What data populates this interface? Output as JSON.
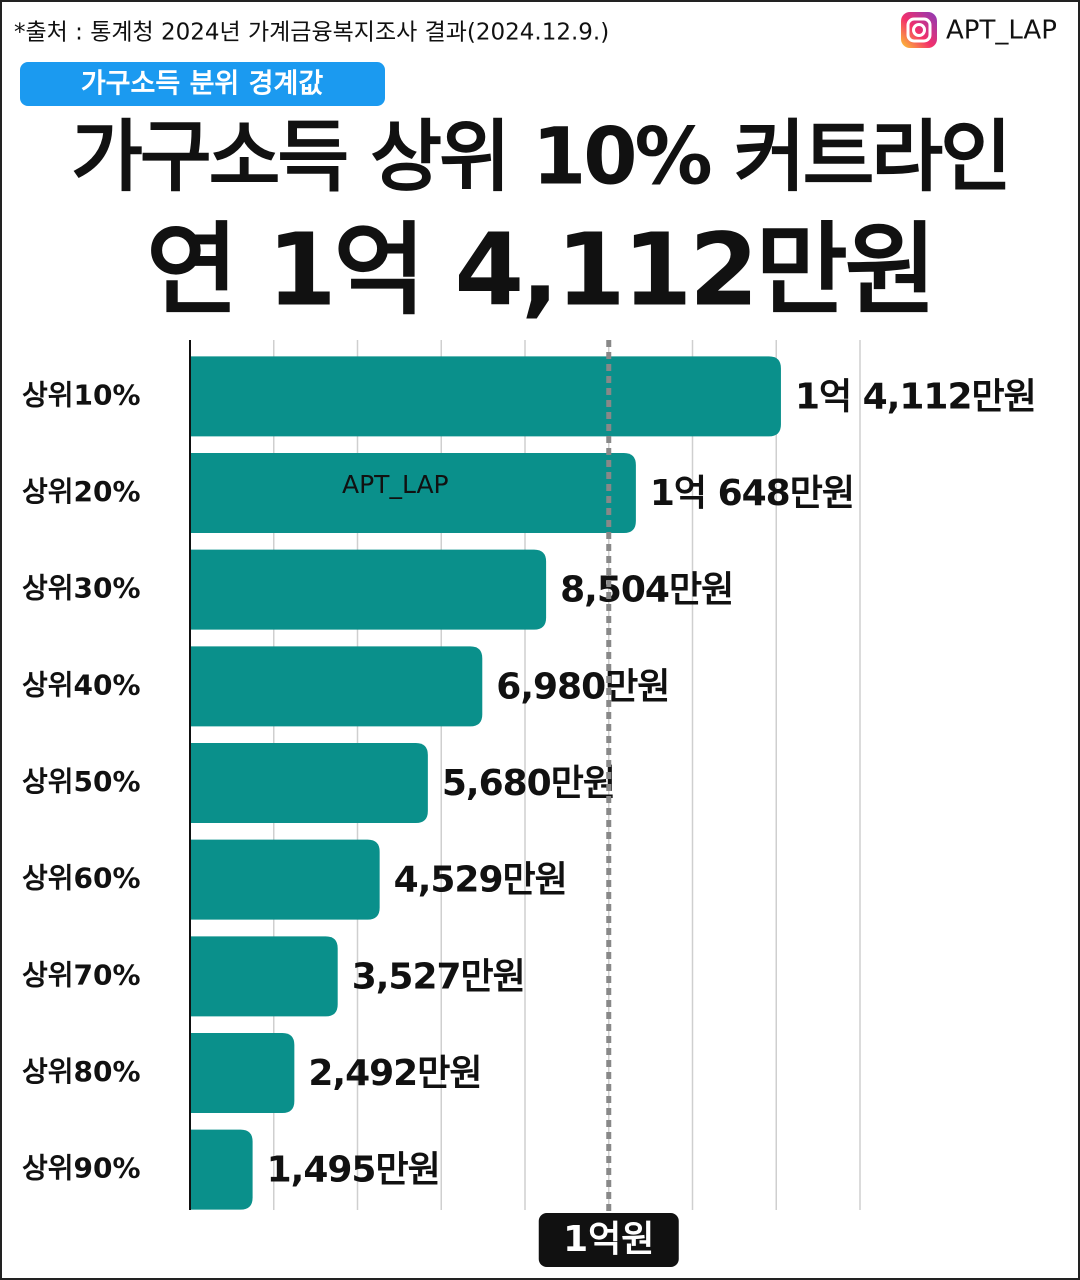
{
  "chart_data": {
    "type": "bar",
    "orientation": "horizontal",
    "source_note": "*출처 : 통계청 2024년 가계금융복지조사 결과(2024.12.9.)",
    "handle": "APT_LAP",
    "badge": "가구소득 분위 경계값",
    "title": "가구소득 상위 10% 커트라인",
    "subtitle": "연  1억 4,112만원",
    "watermark": "APT_LAP",
    "categories": [
      "상위10%",
      "상위20%",
      "상위30%",
      "상위40%",
      "상위50%",
      "상위60%",
      "상위70%",
      "상위80%",
      "상위90%"
    ],
    "values": [
      14112,
      10648,
      8504,
      6980,
      5680,
      4529,
      3527,
      2492,
      1495
    ],
    "value_labels": [
      "1억 4,112만원",
      "1억 648만원",
      "8,504만원",
      "6,980만원",
      "5,680만원",
      "4,529만원",
      "3,527만원",
      "2,492만원",
      "1,495만원"
    ],
    "color": "#0a908b",
    "xlim": [
      0,
      16000
    ],
    "gridlines": [
      2000,
      4000,
      6000,
      8000,
      10000,
      12000,
      14000,
      16000
    ],
    "reference_line": {
      "value": 10000,
      "label": "1억원"
    }
  }
}
